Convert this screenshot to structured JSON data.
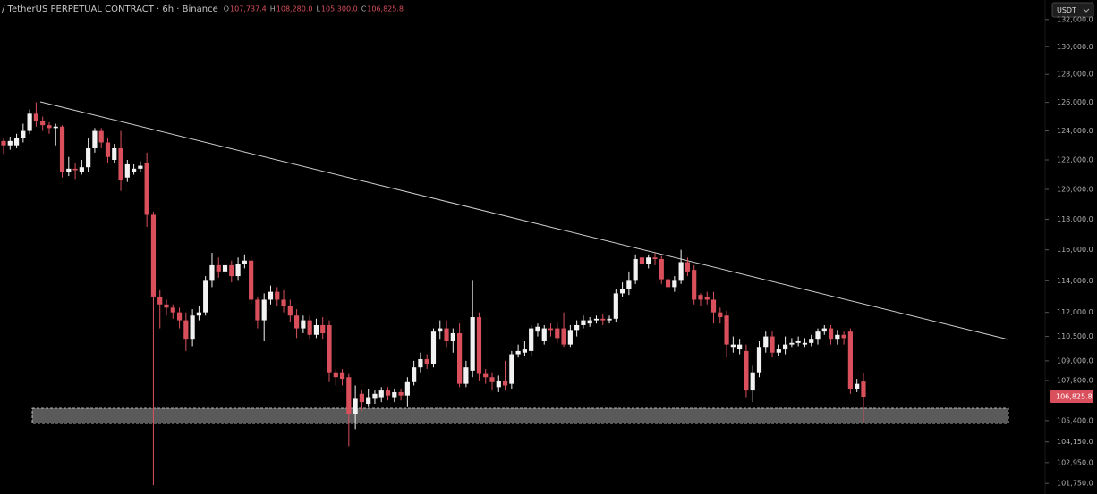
{
  "chart_data": {
    "type": "candlestick",
    "title": "/ TetherUS PERPETUAL CONTRACT · 6h · Binance",
    "ohlc_legend": [
      {
        "key": "O",
        "value": "107,737.4"
      },
      {
        "key": "H",
        "value": "108,280.0"
      },
      {
        "key": "L",
        "value": "105,300.0"
      },
      {
        "key": "C",
        "value": "106,825.8"
      }
    ],
    "currency": "USDT",
    "log_scale": true,
    "up_color": "#f2f2f2",
    "down_color": "#d9505c",
    "ylim": [
      101150,
      133450
    ],
    "yticks": [
      {
        "value": 132000,
        "label": "132,000.0"
      },
      {
        "value": 130000,
        "label": "130,000.0"
      },
      {
        "value": 128000,
        "label": "128,000.0"
      },
      {
        "value": 126000,
        "label": "126,000.0"
      },
      {
        "value": 124000,
        "label": "124,000.0"
      },
      {
        "value": 122000,
        "label": "122,000.0"
      },
      {
        "value": 120000,
        "label": "120,000.0"
      },
      {
        "value": 118000,
        "label": "118,000.0"
      },
      {
        "value": 116000,
        "label": "116,000.0"
      },
      {
        "value": 114000,
        "label": "114,000.0"
      },
      {
        "value": 112000,
        "label": "112,000.0"
      },
      {
        "value": 110500,
        "label": "110,500.0"
      },
      {
        "value": 109000,
        "label": "109,000.0"
      },
      {
        "value": 107800,
        "label": "107,800.0"
      },
      {
        "value": 105400,
        "label": "105,400.0"
      },
      {
        "value": 104150,
        "label": "104,150.0"
      },
      {
        "value": 102950,
        "label": "102,950.0"
      },
      {
        "value": 101750,
        "label": "101,750.0"
      }
    ],
    "price_tag": {
      "value": 106825.8,
      "label": "106,825.8"
    },
    "open": [
      123300,
      123000,
      123000,
      123500,
      124000,
      125200,
      124700,
      124400,
      124200,
      124300,
      121200,
      121400,
      121200,
      121500,
      122800,
      124000,
      123200,
      122000,
      122800,
      120800,
      121200,
      121400,
      121800,
      118300,
      113000,
      112500,
      112300,
      112000,
      111500,
      110300,
      111800,
      112000,
      114000,
      115000,
      114600,
      115000,
      114300,
      115100,
      115300,
      112800,
      111500,
      112800,
      113300,
      112800,
      112400,
      111800,
      111000,
      111500,
      110600,
      111200,
      111200,
      108300,
      108300,
      108000,
      105800,
      107000,
      106400,
      106700,
      106800,
      107200,
      106800,
      107100,
      106900,
      107700,
      108600,
      109100,
      108800,
      110800,
      111000,
      110200,
      110700,
      107600,
      108400,
      111700,
      108200,
      108000,
      107400,
      107800,
      107600,
      109400,
      109500,
      109600,
      110800,
      110200,
      111000,
      111000,
      111000,
      110000,
      110900,
      111200,
      111300,
      111500,
      111600,
      111500,
      111600,
      113200,
      113500,
      114000,
      115500,
      115100,
      115500,
      115400,
      114100,
      113600,
      114000,
      115200,
      114700,
      113100,
      113000,
      112800,
      112000,
      111800,
      109800,
      109700,
      109600,
      107200,
      108300,
      109800,
      110500,
      109500,
      109700,
      110000,
      110100,
      110000,
      110100,
      110300,
      110800,
      111000,
      110300,
      110600,
      110800,
      107300,
      107737.4
    ],
    "high": [
      123500,
      123600,
      123800,
      124500,
      125500,
      126000,
      125000,
      124600,
      124500,
      124400,
      122200,
      121800,
      122000,
      123500,
      124200,
      124200,
      123500,
      123100,
      124000,
      122000,
      121700,
      121900,
      122500,
      118500,
      113400,
      112800,
      112500,
      112300,
      112000,
      112200,
      112400,
      114300,
      115800,
      115500,
      115300,
      115300,
      115500,
      115700,
      115500,
      113000,
      113200,
      113700,
      113600,
      113400,
      112800,
      112200,
      111800,
      111800,
      111600,
      111700,
      111500,
      108500,
      108500,
      108200,
      107500,
      107200,
      107300,
      107200,
      107400,
      107400,
      107300,
      107300,
      108000,
      109000,
      109500,
      109400,
      111000,
      111500,
      111500,
      111000,
      111300,
      109000,
      114000,
      112000,
      108500,
      108300,
      108100,
      109000,
      109600,
      110000,
      110200,
      111200,
      111300,
      111200,
      111300,
      111400,
      112000,
      111200,
      111500,
      111800,
      111700,
      111800,
      111900,
      111800,
      113500,
      113900,
      114600,
      115700,
      116200,
      115700,
      115800,
      115600,
      114400,
      114300,
      116000,
      115500,
      115000,
      113200,
      113300,
      113300,
      112300,
      112100,
      110500,
      110300,
      110000,
      108700,
      110200,
      110800,
      110800,
      110000,
      110500,
      110400,
      110500,
      110400,
      110600,
      111000,
      111200,
      111200,
      110900,
      110800,
      111000,
      107900,
      108280
    ],
    "low": [
      122400,
      122700,
      122800,
      123200,
      123800,
      124300,
      124000,
      123800,
      123000,
      120800,
      120900,
      120700,
      121000,
      121200,
      122500,
      122800,
      121800,
      121800,
      119900,
      120500,
      121000,
      121200,
      117500,
      101650,
      111000,
      111800,
      111600,
      111000,
      109600,
      109900,
      111500,
      111800,
      113600,
      114200,
      114300,
      113900,
      114000,
      114800,
      112500,
      111000,
      110200,
      112500,
      112400,
      112000,
      111400,
      110400,
      110700,
      110300,
      110400,
      110300,
      107700,
      107500,
      107500,
      103900,
      104900,
      106000,
      106200,
      106400,
      106500,
      106600,
      106500,
      106600,
      106200,
      107500,
      108300,
      108500,
      108600,
      110300,
      109800,
      109500,
      107400,
      107400,
      108000,
      107800,
      107600,
      107200,
      107100,
      107200,
      107300,
      109200,
      109300,
      109300,
      110500,
      110000,
      110500,
      110100,
      109800,
      109800,
      110500,
      111000,
      111100,
      111300,
      111200,
      111300,
      111400,
      113000,
      113100,
      113800,
      114900,
      114800,
      115000,
      113800,
      113400,
      113300,
      113800,
      114300,
      112500,
      112400,
      112500,
      111300,
      111300,
      109200,
      109500,
      109400,
      106800,
      106500,
      108000,
      109500,
      109200,
      109300,
      109400,
      109800,
      109900,
      109800,
      109900,
      110000,
      110600,
      110000,
      110000,
      110000,
      107000,
      107100,
      105300
    ],
    "close": [
      123000,
      123300,
      123500,
      124000,
      125200,
      124700,
      124400,
      124200,
      124300,
      121200,
      121400,
      121300,
      121500,
      122800,
      124000,
      123200,
      122200,
      122800,
      120600,
      121700,
      121400,
      121600,
      118300,
      113000,
      112500,
      112300,
      112000,
      111500,
      110300,
      111800,
      112000,
      114000,
      115000,
      114600,
      115000,
      114300,
      115100,
      115300,
      112800,
      111500,
      112800,
      113300,
      112800,
      112400,
      111800,
      111000,
      111500,
      110600,
      111200,
      110700,
      108300,
      108000,
      107900,
      105800,
      106700,
      106500,
      106800,
      107000,
      107200,
      106900,
      107100,
      106900,
      107700,
      108600,
      109100,
      108800,
      110800,
      111000,
      110200,
      110700,
      107600,
      108600,
      111700,
      108200,
      108000,
      107700,
      107800,
      107500,
      109400,
      109600,
      109700,
      111000,
      111100,
      111000,
      110900,
      110400,
      110000,
      110900,
      111200,
      111500,
      111500,
      111600,
      111500,
      111600,
      113200,
      113500,
      114000,
      115400,
      115100,
      115500,
      115400,
      114100,
      113600,
      114000,
      115200,
      114600,
      112800,
      112800,
      112800,
      112000,
      111700,
      110000,
      110000,
      110000,
      107200,
      108300,
      109800,
      110500,
      109500,
      109700,
      110000,
      110100,
      110200,
      110100,
      110300,
      110800,
      111000,
      110300,
      110600,
      110400,
      107300,
      107600,
      106825.8
    ]
  }
}
